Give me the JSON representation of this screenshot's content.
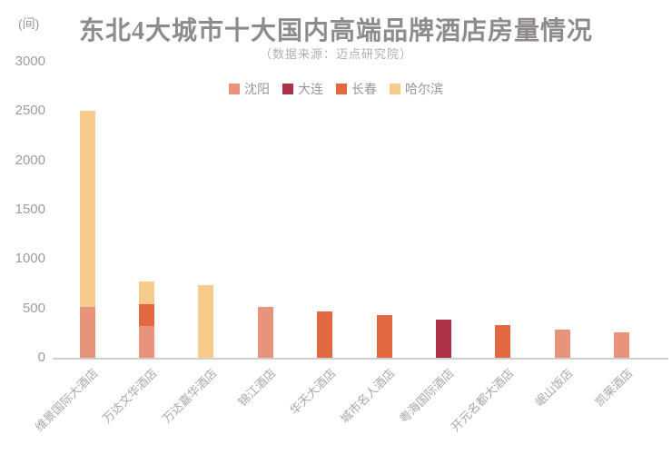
{
  "chart_data": {
    "type": "bar",
    "stacked": true,
    "title": "东北4大城市十大国内高端品牌酒店房量情况",
    "subtitle": "（数据来源：迈点研究院）",
    "unit_label": "(间)",
    "legend_position": "top-center",
    "grid": false,
    "legend": [
      {
        "name": "沈阳",
        "color": "#E8937C"
      },
      {
        "name": "大连",
        "color": "#AC3046"
      },
      {
        "name": "长春",
        "color": "#E2693F"
      },
      {
        "name": "哈尔滨",
        "color": "#F6CB8C"
      }
    ],
    "categories": [
      "维景国际大酒店",
      "万达文华酒店",
      "万达嘉华酒店",
      "锦江酒店",
      "华天大酒店",
      "城市名人酒店",
      "粤海国际酒店",
      "开元名都大酒店",
      "岷山饭店",
      "凯莱酒店"
    ],
    "series": [
      {
        "name": "沈阳",
        "values": [
          530,
          330,
          0,
          530,
          0,
          0,
          0,
          0,
          300,
          270
        ]
      },
      {
        "name": "大连",
        "values": [
          0,
          0,
          0,
          0,
          0,
          0,
          400,
          0,
          0,
          0
        ]
      },
      {
        "name": "长春",
        "values": [
          0,
          230,
          0,
          0,
          480,
          440,
          0,
          340,
          0,
          0
        ]
      },
      {
        "name": "哈尔滨",
        "values": [
          2000,
          230,
          750,
          0,
          0,
          0,
          0,
          0,
          0,
          0
        ]
      }
    ],
    "totals": [
      2530,
      790,
      750,
      530,
      480,
      440,
      400,
      340,
      300,
      270
    ],
    "ylabel": "",
    "xlabel": "",
    "ylim": [
      0,
      3000
    ],
    "y_ticks": [
      0,
      500,
      1000,
      1500,
      2000,
      2500,
      3000
    ],
    "axis_line_color": "#cfcfcf"
  }
}
